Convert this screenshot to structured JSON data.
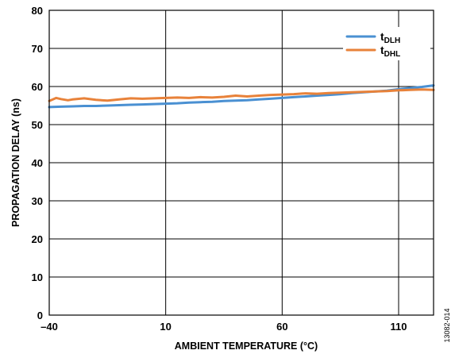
{
  "chart_data": {
    "type": "line",
    "xlabel": "AMBIENT TEMPERATURE (°C)",
    "ylabel": "PROPAGATION DELAY (ns)",
    "xlim": [
      -40,
      125
    ],
    "ylim": [
      0,
      80
    ],
    "xticks": [
      -40,
      10,
      60,
      110
    ],
    "xtick_labels": [
      "–40",
      "10",
      "60",
      "110"
    ],
    "yticks": [
      0,
      10,
      20,
      30,
      40,
      50,
      60,
      70,
      80
    ],
    "grid": true,
    "legend_position": "top-right",
    "figure_id": "13082-014",
    "series": [
      {
        "name_main": "t",
        "name_sub": "DLH",
        "color": "#4a90d2",
        "x": [
          -40,
          -35,
          -30,
          -25,
          -20,
          -15,
          -10,
          -5,
          0,
          5,
          10,
          15,
          20,
          25,
          30,
          35,
          40,
          45,
          50,
          55,
          60,
          65,
          70,
          75,
          80,
          85,
          90,
          95,
          100,
          105,
          110,
          115,
          120,
          125
        ],
        "y": [
          54.6,
          54.7,
          54.8,
          54.9,
          54.9,
          55.0,
          55.1,
          55.2,
          55.3,
          55.4,
          55.5,
          55.6,
          55.8,
          55.9,
          56.0,
          56.2,
          56.3,
          56.4,
          56.6,
          56.8,
          57.0,
          57.2,
          57.4,
          57.6,
          57.8,
          58.0,
          58.3,
          58.5,
          58.7,
          58.9,
          59.3,
          59.6,
          59.9,
          60.3
        ]
      },
      {
        "name_main": "t",
        "name_sub": "DHL",
        "color": "#e8823a",
        "x": [
          -40,
          -37,
          -35,
          -32,
          -30,
          -25,
          -20,
          -15,
          -10,
          -5,
          0,
          5,
          10,
          15,
          20,
          25,
          30,
          35,
          40,
          45,
          50,
          55,
          60,
          65,
          70,
          75,
          80,
          85,
          90,
          95,
          100,
          105,
          110,
          115,
          120,
          125
        ],
        "y": [
          56.2,
          57.0,
          56.7,
          56.4,
          56.6,
          56.9,
          56.5,
          56.3,
          56.6,
          56.9,
          56.8,
          56.9,
          57.0,
          57.1,
          57.0,
          57.2,
          57.1,
          57.3,
          57.6,
          57.4,
          57.6,
          57.8,
          57.9,
          58.0,
          58.2,
          58.1,
          58.3,
          58.4,
          58.5,
          58.6,
          58.7,
          58.8,
          59.0,
          59.1,
          59.2,
          59.1
        ]
      }
    ]
  }
}
